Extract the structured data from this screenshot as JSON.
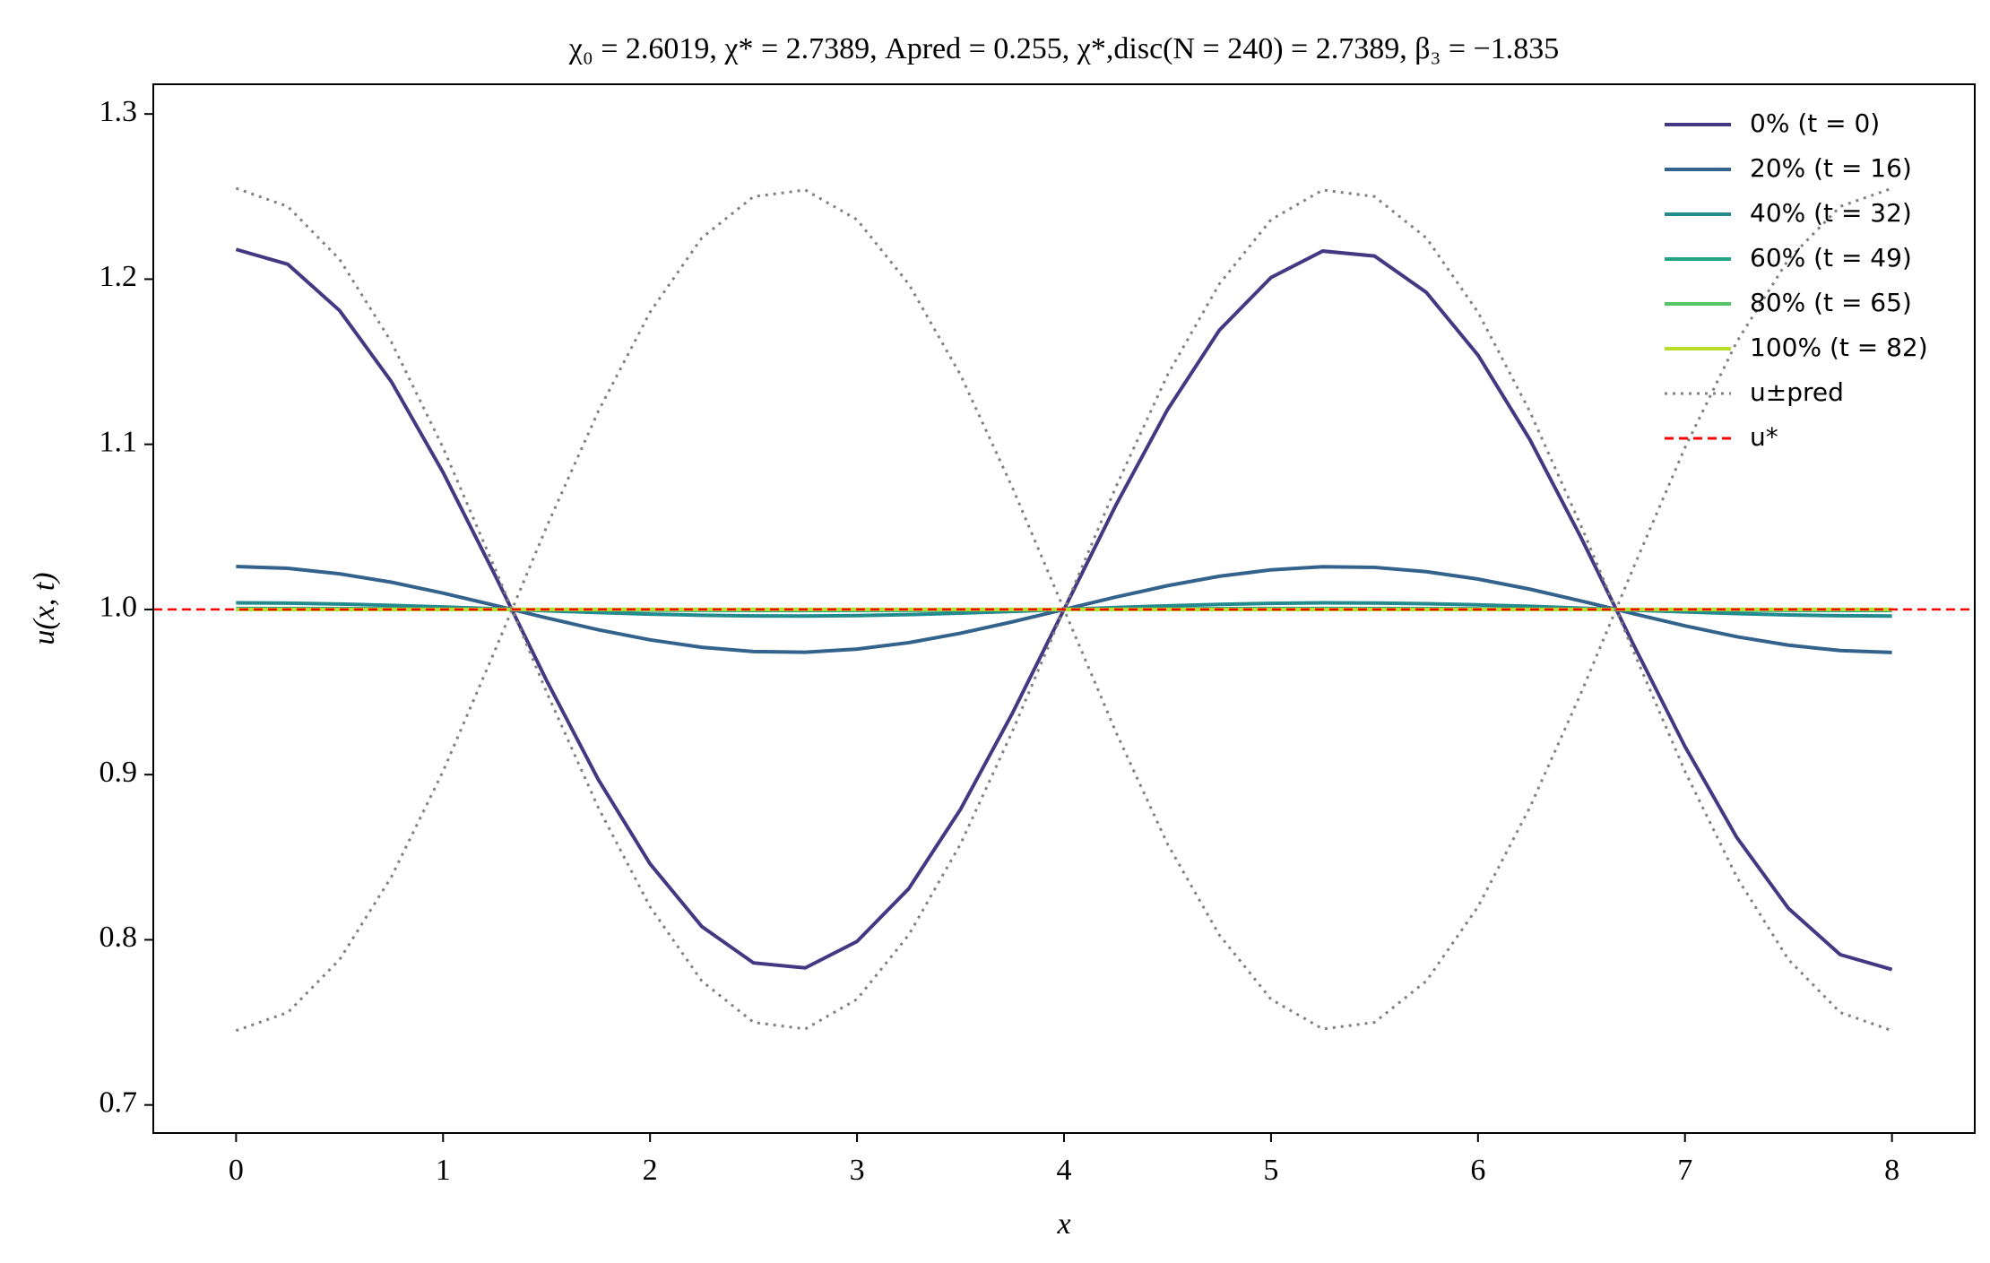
{
  "chart_data": {
    "type": "line",
    "title": "χ₀ = 2.6019,  χ* = 2.7389,  Apred = 0.255,  χ*,disc(N = 240) = 2.7389,  β₃ = −1.835",
    "x_label": "x",
    "y_label": "u(x, t)",
    "x": [
      0,
      0.25,
      0.5,
      0.75,
      1,
      1.25,
      1.5,
      1.75,
      2,
      2.25,
      2.5,
      2.75,
      3,
      3.25,
      3.5,
      3.75,
      4,
      4.25,
      4.5,
      4.75,
      5,
      5.25,
      5.5,
      5.75,
      6,
      6.25,
      6.5,
      6.75,
      7,
      7.25,
      7.5,
      7.75,
      8
    ],
    "series": [
      {
        "name": "0% (t = 0)",
        "color": "#453882",
        "style": "solid",
        "values": [
          1.218,
          1.209,
          1.181,
          1.138,
          1.083,
          1.021,
          0.957,
          0.897,
          0.846,
          0.808,
          0.786,
          0.783,
          0.799,
          0.831,
          0.879,
          0.937,
          1.0,
          1.063,
          1.121,
          1.169,
          1.201,
          1.217,
          1.214,
          1.192,
          1.154,
          1.103,
          1.043,
          0.979,
          0.917,
          0.862,
          0.819,
          0.791,
          0.782
        ]
      },
      {
        "name": "20% (t = 16)",
        "color": "#33638d",
        "style": "solid",
        "values": [
          1.026,
          1.0249,
          1.0216,
          1.0165,
          1.0099,
          1.0025,
          0.9949,
          0.9877,
          0.9816,
          0.9771,
          0.9745,
          0.9741,
          0.976,
          0.9799,
          0.9856,
          0.9925,
          1.0,
          1.0075,
          1.0144,
          1.0201,
          1.024,
          1.0259,
          1.0255,
          1.0229,
          1.0184,
          1.0123,
          1.0051,
          0.9975,
          0.9901,
          0.9835,
          0.9784,
          0.9751,
          0.974
        ]
      },
      {
        "name": "40% (t = 32)",
        "color": "#238a8d",
        "style": "solid",
        "values": [
          1.004,
          1.0038,
          1.0033,
          1.0025,
          1.0015,
          1.0004,
          0.9992,
          0.9981,
          0.9972,
          0.9965,
          0.9961,
          0.996,
          0.9963,
          0.9969,
          0.9978,
          0.9988,
          1.0,
          1.0012,
          1.0022,
          1.0031,
          1.0037,
          1.004,
          1.0039,
          1.0035,
          1.0028,
          1.0019,
          1.0008,
          0.9996,
          0.9985,
          0.9975,
          0.9967,
          0.9962,
          0.996
        ]
      },
      {
        "name": "60% (t = 49)",
        "color": "#20a386",
        "style": "solid",
        "values": [
          1.0006,
          1.0006,
          1.0005,
          1.0004,
          1.0002,
          1.0001,
          0.9999,
          0.9997,
          0.9996,
          0.9995,
          0.9994,
          0.9994,
          0.9994,
          0.9995,
          0.9997,
          0.9998,
          1.0,
          1.0002,
          1.0003,
          1.0005,
          1.0006,
          1.0006,
          1.0006,
          1.0005,
          1.0004,
          1.0003,
          1.0001,
          0.9999,
          0.9998,
          0.9996,
          0.9995,
          0.9994,
          0.9994
        ]
      },
      {
        "name": "80% (t = 65)",
        "color": "#55c667",
        "style": "solid",
        "values": [
          1,
          1,
          1,
          1,
          1,
          1,
          1,
          1,
          1,
          1,
          1,
          1,
          1,
          1,
          1,
          1,
          1,
          1,
          1,
          1,
          1,
          1,
          1,
          1,
          1,
          1,
          1,
          1,
          1,
          1,
          1,
          1,
          1
        ]
      },
      {
        "name": "100% (t = 82)",
        "color": "#b8de29",
        "style": "solid",
        "values": [
          1,
          1,
          1,
          1,
          1,
          1,
          1,
          1,
          1,
          1,
          1,
          1,
          1,
          1,
          1,
          1,
          1,
          1,
          1,
          1,
          1,
          1,
          1,
          1,
          1,
          1,
          1,
          1,
          1,
          1,
          1,
          1,
          1
        ]
      },
      {
        "name": "u±pred",
        "color": "#808080",
        "style": "dotted",
        "values": [
          1.255,
          1.244,
          1.212,
          1.162,
          1.098,
          1.025,
          0.95,
          0.88,
          0.82,
          0.775,
          0.75,
          0.746,
          0.764,
          0.803,
          0.858,
          0.926,
          1.0,
          1.074,
          1.142,
          1.197,
          1.236,
          1.254,
          1.25,
          1.225,
          1.18,
          1.12,
          1.05,
          0.975,
          0.902,
          0.838,
          0.788,
          0.756,
          0.745
        ],
        "values_lower": [
          0.745,
          0.756,
          0.788,
          0.838,
          0.902,
          0.975,
          1.05,
          1.12,
          1.18,
          1.225,
          1.25,
          1.254,
          1.236,
          1.197,
          1.142,
          1.074,
          1.0,
          0.926,
          0.858,
          0.803,
          0.764,
          0.746,
          0.75,
          0.775,
          0.82,
          0.88,
          0.95,
          1.025,
          1.098,
          1.162,
          1.212,
          1.244,
          1.255
        ]
      }
    ],
    "hline": {
      "name": "u*",
      "value": 1.0,
      "color": "#ff0000",
      "style": "dashed"
    },
    "xlim": [
      -0.4,
      8.4
    ],
    "ylim": [
      0.683,
      1.318
    ],
    "xticks": [
      0,
      1,
      2,
      3,
      4,
      5,
      6,
      7,
      8
    ],
    "yticks": [
      0.7,
      0.8,
      0.9,
      {
        "value": 1,
        "label": "1.0"
      },
      1.1,
      1.2,
      1.3
    ],
    "grid": false,
    "legend": "upper right"
  }
}
